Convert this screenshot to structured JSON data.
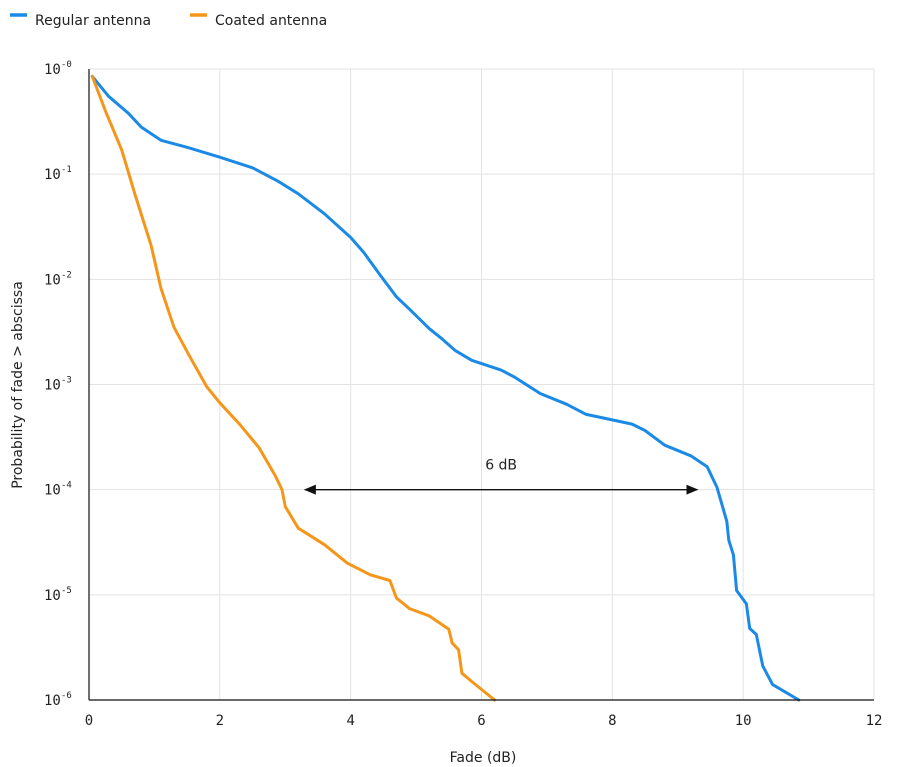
{
  "chart_data": {
    "type": "line",
    "title": "",
    "xlabel": "Fade (dB)",
    "ylabel": "Probability of fade > abscissa",
    "xlim": [
      0,
      12
    ],
    "ylim_log10": [
      -6,
      0
    ],
    "y_scale": "log",
    "x_ticks": [
      "0",
      "2",
      "4",
      "6",
      "8",
      "10",
      "12"
    ],
    "x_tick_values": [
      0,
      2,
      4,
      6,
      8,
      10,
      12
    ],
    "y_ticks": [
      {
        "base": "10",
        "exp": "-0",
        "log10": 0
      },
      {
        "base": "10",
        "exp": "-1",
        "log10": -1
      },
      {
        "base": "10",
        "exp": "-2",
        "log10": -2
      },
      {
        "base": "10",
        "exp": "-3",
        "log10": -3
      },
      {
        "base": "10",
        "exp": "-4",
        "log10": -4
      },
      {
        "base": "10",
        "exp": "-5",
        "log10": -5
      },
      {
        "base": "10",
        "exp": "-6",
        "log10": -6
      }
    ],
    "grid": true,
    "legend_position": "top-left",
    "series": [
      {
        "name": "Regular antenna",
        "color": "#1a8ae6",
        "points": [
          [
            0.05,
            0.85
          ],
          [
            0.3,
            0.55
          ],
          [
            0.6,
            0.38
          ],
          [
            0.8,
            0.28
          ],
          [
            1.1,
            0.21
          ],
          [
            1.5,
            0.18
          ],
          [
            2.0,
            0.145
          ],
          [
            2.5,
            0.115
          ],
          [
            2.9,
            0.085
          ],
          [
            3.2,
            0.065
          ],
          [
            3.6,
            0.042
          ],
          [
            4.0,
            0.025
          ],
          [
            4.2,
            0.018
          ],
          [
            4.45,
            0.011
          ],
          [
            4.7,
            0.0068
          ],
          [
            4.9,
            0.0052
          ],
          [
            5.2,
            0.0034
          ],
          [
            5.4,
            0.0027
          ],
          [
            5.6,
            0.0021
          ],
          [
            5.85,
            0.0017
          ],
          [
            6.3,
            0.00137
          ],
          [
            6.5,
            0.00118
          ],
          [
            6.9,
            0.00082
          ],
          [
            7.3,
            0.00065
          ],
          [
            7.6,
            0.00052
          ],
          [
            7.9,
            0.000475
          ],
          [
            8.3,
            0.00042
          ],
          [
            8.5,
            0.000365
          ],
          [
            8.8,
            0.000265
          ],
          [
            9.2,
            0.00021
          ],
          [
            9.45,
            0.000165
          ],
          [
            9.6,
            0.000105
          ],
          [
            9.75,
            5e-05
          ],
          [
            9.78,
            3.3e-05
          ],
          [
            9.85,
            2.4e-05
          ],
          [
            9.9,
            1.1e-05
          ],
          [
            10.05,
            8.2e-06
          ],
          [
            10.1,
            4.8e-06
          ],
          [
            10.2,
            4.2e-06
          ],
          [
            10.3,
            2.1e-06
          ],
          [
            10.45,
            1.4e-06
          ],
          [
            10.85,
            1e-06
          ]
        ]
      },
      {
        "name": "Coated antenna",
        "color": "#f5961a",
        "points": [
          [
            0.05,
            0.85
          ],
          [
            0.25,
            0.4
          ],
          [
            0.5,
            0.17
          ],
          [
            0.7,
            0.065
          ],
          [
            0.95,
            0.021
          ],
          [
            1.1,
            0.0082
          ],
          [
            1.3,
            0.0035
          ],
          [
            1.55,
            0.0018
          ],
          [
            1.8,
            0.00095
          ],
          [
            2.0,
            0.00067
          ],
          [
            2.3,
            0.00042
          ],
          [
            2.6,
            0.00025
          ],
          [
            2.85,
            0.000135
          ],
          [
            2.95,
            0.0001
          ],
          [
            3.0,
            6.9e-05
          ],
          [
            3.2,
            4.3e-05
          ],
          [
            3.6,
            3e-05
          ],
          [
            3.95,
            2e-05
          ],
          [
            4.3,
            1.55e-05
          ],
          [
            4.6,
            1.37e-05
          ],
          [
            4.7,
            9.3e-06
          ],
          [
            4.9,
            7.4e-06
          ],
          [
            5.2,
            6.3e-06
          ],
          [
            5.5,
            4.7e-06
          ],
          [
            5.55,
            3.5e-06
          ],
          [
            5.65,
            3e-06
          ],
          [
            5.7,
            1.8e-06
          ],
          [
            5.85,
            1.5e-06
          ],
          [
            6.2,
            1e-06
          ]
        ]
      }
    ],
    "annotations": [
      {
        "text": "6 dB",
        "from_x": 3.3,
        "to_x": 9.3,
        "log10_y": -4
      }
    ]
  }
}
